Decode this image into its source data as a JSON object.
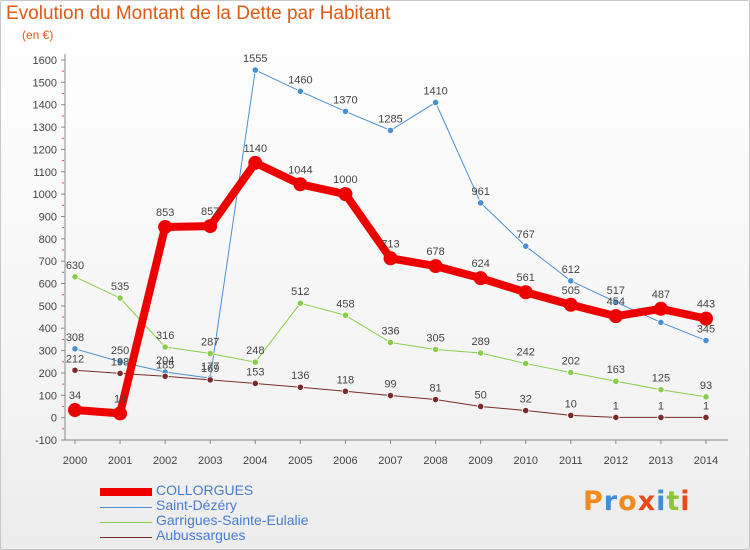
{
  "title": "Evolution du Montant de la Dette par Habitant",
  "unit": "(en €)",
  "logo": {
    "text": "Proxiti",
    "colors": [
      "#f08a1c",
      "#3c8fd8",
      "#f08a1c",
      "#e84a1c",
      "#3c8fd8",
      "#8cc43c",
      "#e84a1c"
    ]
  },
  "chart_data": {
    "type": "line",
    "title": "Evolution du Montant de la Dette par Habitant",
    "ylabel": "(en €)",
    "xlabel": "",
    "ylim": [
      -100,
      1600
    ],
    "yticks": [
      -100,
      0,
      100,
      200,
      300,
      400,
      500,
      600,
      700,
      800,
      900,
      1000,
      1100,
      1200,
      1300,
      1400,
      1500,
      1600
    ],
    "x": [
      "2000",
      "2001",
      "2002",
      "2003",
      "2004",
      "2005",
      "2006",
      "2007",
      "2008",
      "2009",
      "2010",
      "2011",
      "2012",
      "2013",
      "2014"
    ],
    "grid": false,
    "legend_position": "bottom-left",
    "series": [
      {
        "name": "COLLORGUES",
        "color": "#ee0000",
        "emphasis": true,
        "values": [
          34,
          19,
          853,
          857,
          1140,
          1044,
          1000,
          713,
          678,
          624,
          561,
          505,
          454,
          487,
          443
        ],
        "labels": [
          "34",
          "19",
          "853",
          "857",
          "1140",
          "1044",
          "1000",
          "713",
          "678",
          "624",
          "561",
          "505",
          "454",
          "487",
          "443"
        ]
      },
      {
        "name": "Saint-Dézéry",
        "color": "#4a90d0",
        "emphasis": false,
        "values": [
          308,
          250,
          204,
          177,
          1555,
          1460,
          1370,
          1285,
          1410,
          961,
          767,
          612,
          517,
          426,
          345
        ],
        "labels": [
          "308",
          "250",
          "204",
          "177",
          "1555",
          "1460",
          "1370",
          "1285",
          "1410",
          "961",
          "767",
          "612",
          "517",
          "426",
          "345"
        ]
      },
      {
        "name": "Garrigues-Sainte-Eulalie",
        "color": "#8ccc4c",
        "emphasis": false,
        "values": [
          630,
          535,
          316,
          287,
          248,
          512,
          458,
          336,
          305,
          289,
          242,
          202,
          163,
          125,
          93
        ],
        "labels": [
          "630",
          "535",
          "316",
          "287",
          "248",
          "512",
          "458",
          "336",
          "305",
          "289",
          "242",
          "202",
          "163",
          "125",
          "93"
        ]
      },
      {
        "name": "Aubussargues",
        "color": "#7a2a2a",
        "emphasis": false,
        "values": [
          212,
          198,
          185,
          169,
          153,
          136,
          118,
          99,
          81,
          50,
          32,
          10,
          1,
          1,
          1
        ],
        "labels": [
          "212",
          "198",
          "185",
          "169",
          "153",
          "136",
          "118",
          "99",
          "81",
          "50",
          "32",
          "10",
          "1",
          "1",
          "1"
        ]
      }
    ]
  }
}
